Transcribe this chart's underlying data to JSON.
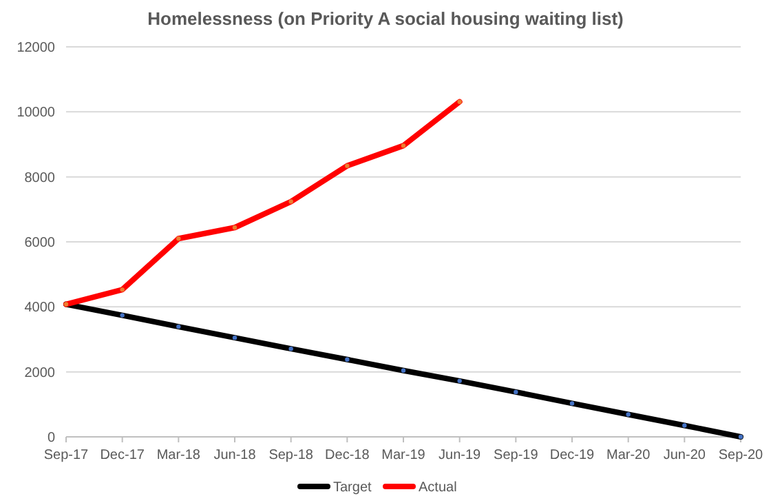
{
  "chart_data": {
    "type": "line",
    "title": "Homelessness (on Priority A social housing waiting list)",
    "categories": [
      "Sep-17",
      "Dec-17",
      "Mar-18",
      "Jun-18",
      "Sep-18",
      "Dec-18",
      "Mar-19",
      "Jun-19",
      "Sep-19",
      "Dec-19",
      "Mar-20",
      "Jun-20",
      "Sep-20"
    ],
    "series": [
      {
        "name": "Target",
        "color": "#000000",
        "values": [
          4080,
          3740,
          3390,
          3050,
          2710,
          2380,
          2040,
          1720,
          1380,
          1030,
          690,
          350,
          0
        ]
      },
      {
        "name": "Actual",
        "color": "#ff0000",
        "values": [
          4080,
          4530,
          6100,
          6440,
          7240,
          8340,
          8960,
          10310,
          null,
          null,
          null,
          null,
          null
        ]
      }
    ],
    "ylim": [
      0,
      12000
    ],
    "yticks": [
      0,
      2000,
      4000,
      6000,
      8000,
      10000,
      12000
    ],
    "grid": "y",
    "legend": "bottom",
    "marker": "circle",
    "line_style": "solid"
  }
}
